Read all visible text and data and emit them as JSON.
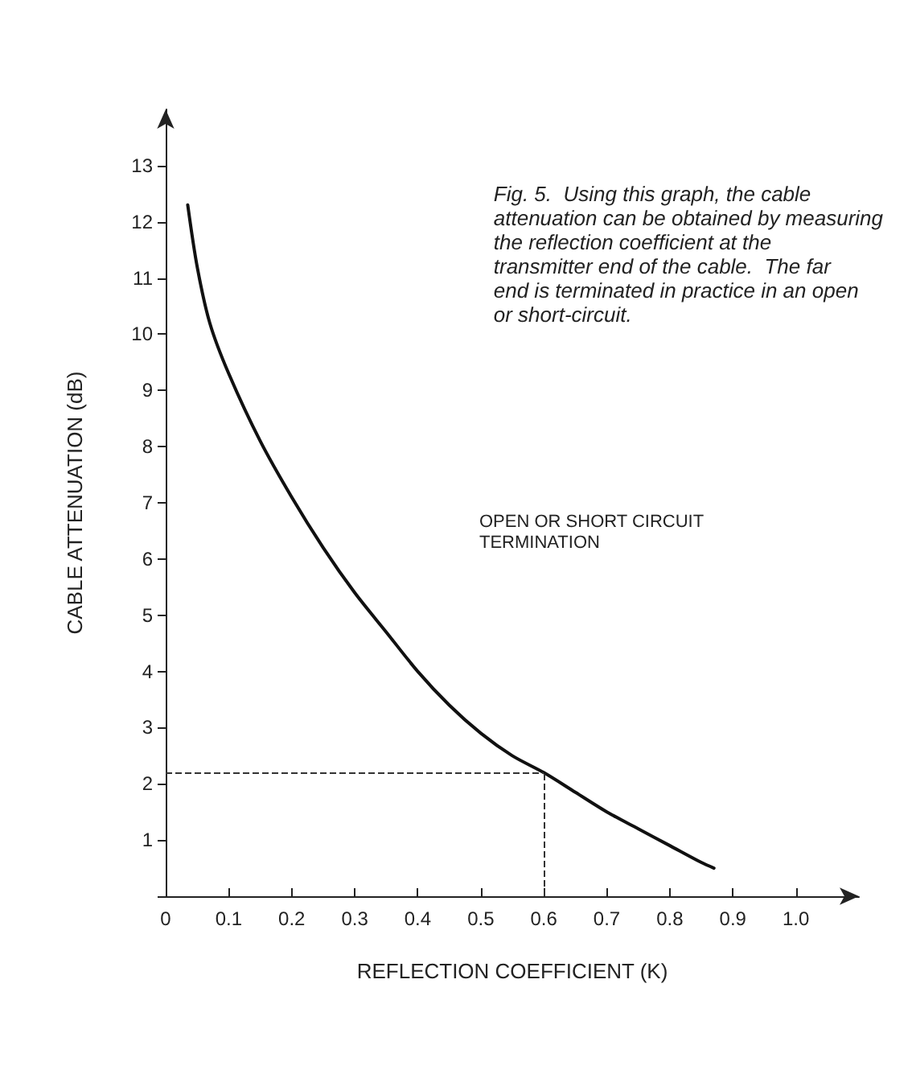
{
  "chart_data": {
    "type": "line",
    "xlabel": "REFLECTION COEFFICIENT (K)",
    "ylabel": "CABLE ATTENUATION (dB)",
    "annotations": [
      "Fig. 5.  Using this graph, the cable attenuation can be obtained by measuring the reflection coefficient at the transmitter end of the cable.  The far end is terminated in practice in an open or short-circuit.",
      "OPEN OR SHORT CIRCUIT\nTERMINATION"
    ],
    "x": [
      0.035,
      0.05,
      0.07,
      0.1,
      0.15,
      0.2,
      0.25,
      0.3,
      0.35,
      0.4,
      0.45,
      0.5,
      0.55,
      0.6,
      0.65,
      0.7,
      0.75,
      0.8,
      0.85,
      0.87
    ],
    "series": [
      {
        "color": "#111111",
        "values": [
          12.3,
          11.2,
          10.2,
          9.3,
          8.1,
          7.1,
          6.2,
          5.4,
          4.7,
          4.0,
          3.4,
          2.9,
          2.5,
          2.2,
          1.85,
          1.5,
          1.2,
          0.9,
          0.6,
          0.5
        ]
      }
    ],
    "xlim": [
      0,
      1.1
    ],
    "ylim": [
      0,
      14
    ],
    "xticks": [
      0,
      0.1,
      0.2,
      0.3,
      0.4,
      0.5,
      0.6,
      0.7,
      0.8,
      0.9,
      {
        "value": 1,
        "label": "1.0"
      }
    ],
    "yticks": [
      {
        "value": 0,
        "label": null
      },
      1,
      2,
      3,
      4,
      5,
      6,
      7,
      8,
      9,
      10,
      11,
      12,
      13
    ],
    "ref_lines": [
      {
        "axis": "y",
        "value": 2.2,
        "line_style": "dashed"
      },
      {
        "axis": "x",
        "value": 0.6,
        "line_style": "dashed"
      }
    ],
    "grid": false,
    "marker": "none",
    "line_style": "solid"
  }
}
